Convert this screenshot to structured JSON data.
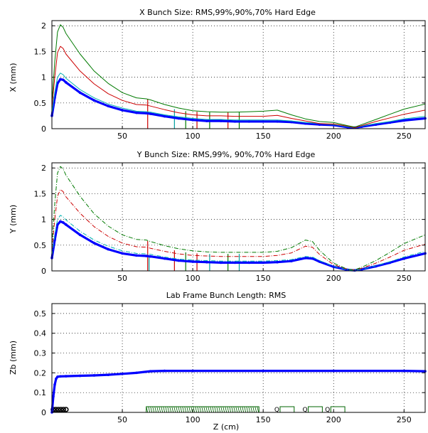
{
  "chart_data": [
    {
      "type": "line",
      "title": "X Bunch Size: RMS,99%,90%,70% Hard Edge",
      "xlabel": "",
      "ylabel": "X (mm)",
      "xlim": [
        0,
        265
      ],
      "ylim": [
        0,
        2.1
      ],
      "xticks": [
        "50",
        "100",
        "150",
        "200",
        "250"
      ],
      "yticks": [
        "0",
        "0.5",
        "1",
        "1.5",
        "2"
      ],
      "grid": true,
      "series": [
        {
          "color": "#0000ff",
          "style": "solid-thick-markers",
          "x": [
            0,
            2,
            4,
            6,
            8,
            10,
            20,
            30,
            40,
            50,
            60,
            67,
            70,
            80,
            90,
            100,
            110,
            120,
            130,
            140,
            150,
            160,
            170,
            180,
            190,
            200,
            210,
            215,
            220,
            230,
            240,
            250,
            265
          ],
          "values": [
            0.25,
            0.6,
            0.88,
            0.96,
            0.95,
            0.9,
            0.7,
            0.55,
            0.44,
            0.36,
            0.31,
            0.3,
            0.29,
            0.24,
            0.2,
            0.17,
            0.15,
            0.15,
            0.14,
            0.14,
            0.14,
            0.14,
            0.13,
            0.1,
            0.08,
            0.07,
            0.03,
            0.02,
            0.04,
            0.08,
            0.12,
            0.16,
            0.2
          ]
        },
        {
          "color": "#00b0b0",
          "style": "solid",
          "x": [
            0,
            2,
            4,
            6,
            8,
            10,
            20,
            30,
            40,
            50,
            60,
            67,
            70,
            80,
            90,
            100,
            110,
            120,
            130,
            140,
            150,
            160,
            170,
            180,
            190,
            200,
            210,
            215,
            220,
            230,
            240,
            250,
            265
          ],
          "values": [
            0.3,
            0.7,
            1.0,
            1.08,
            1.05,
            0.98,
            0.76,
            0.6,
            0.48,
            0.4,
            0.34,
            0.33,
            0.32,
            0.27,
            0.23,
            0.2,
            0.18,
            0.18,
            0.17,
            0.17,
            0.17,
            0.17,
            0.15,
            0.12,
            0.1,
            0.08,
            0.04,
            0.02,
            0.05,
            0.1,
            0.14,
            0.19,
            0.24
          ]
        },
        {
          "color": "#cc0000",
          "style": "solid",
          "x": [
            0,
            2,
            4,
            6,
            8,
            10,
            20,
            30,
            40,
            50,
            60,
            67,
            70,
            80,
            90,
            100,
            110,
            120,
            130,
            140,
            150,
            160,
            170,
            180,
            190,
            200,
            210,
            215,
            220,
            230,
            240,
            250,
            265
          ],
          "values": [
            0.4,
            1.0,
            1.48,
            1.6,
            1.56,
            1.45,
            1.12,
            0.87,
            0.68,
            0.55,
            0.47,
            0.46,
            0.44,
            0.37,
            0.31,
            0.27,
            0.25,
            0.25,
            0.24,
            0.24,
            0.24,
            0.26,
            0.2,
            0.15,
            0.1,
            0.09,
            0.05,
            0.02,
            0.06,
            0.14,
            0.21,
            0.28,
            0.36
          ]
        },
        {
          "color": "#007a00",
          "style": "solid",
          "x": [
            0,
            2,
            4,
            6,
            8,
            10,
            20,
            30,
            40,
            50,
            60,
            67,
            70,
            80,
            90,
            100,
            110,
            120,
            130,
            140,
            150,
            160,
            170,
            180,
            190,
            200,
            210,
            215,
            220,
            230,
            240,
            250,
            265
          ],
          "values": [
            0.5,
            1.3,
            1.88,
            2.02,
            1.97,
            1.85,
            1.45,
            1.12,
            0.88,
            0.7,
            0.6,
            0.58,
            0.56,
            0.47,
            0.4,
            0.35,
            0.33,
            0.32,
            0.32,
            0.33,
            0.34,
            0.36,
            0.27,
            0.19,
            0.14,
            0.12,
            0.06,
            0.03,
            0.08,
            0.18,
            0.28,
            0.38,
            0.48
          ]
        }
      ],
      "markers": [
        {
          "x": 68,
          "top": 0.58,
          "color": "#cc0000"
        },
        {
          "x": 87,
          "top": 0.38,
          "color": "#00a0a0"
        },
        {
          "x": 95,
          "top": 0.34,
          "color": "#007a00"
        },
        {
          "x": 103,
          "top": 0.33,
          "color": "#cc0000"
        },
        {
          "x": 112,
          "top": 0.32,
          "color": "#007a00"
        },
        {
          "x": 125,
          "top": 0.32,
          "color": "#cc0000"
        },
        {
          "x": 133,
          "top": 0.32,
          "color": "#007a00"
        }
      ]
    },
    {
      "type": "line",
      "title": "Y Bunch Size: RMS,99%, 90%,70% Hard Edge",
      "xlabel": "",
      "ylabel": "Y (mm)",
      "xlim": [
        0,
        265
      ],
      "ylim": [
        0,
        2.1
      ],
      "xticks": [
        "50",
        "100",
        "150",
        "200",
        "250"
      ],
      "yticks": [
        "0",
        "0.5",
        "1",
        "1.5",
        "2"
      ],
      "grid": true,
      "series": [
        {
          "color": "#0000ff",
          "style": "solid-thick-markers",
          "x": [
            0,
            2,
            4,
            6,
            8,
            10,
            20,
            30,
            40,
            50,
            60,
            67,
            70,
            80,
            90,
            100,
            110,
            120,
            130,
            140,
            150,
            160,
            170,
            180,
            185,
            190,
            200,
            210,
            215,
            220,
            230,
            240,
            250,
            265
          ],
          "values": [
            0.25,
            0.6,
            0.9,
            0.96,
            0.94,
            0.9,
            0.7,
            0.54,
            0.42,
            0.34,
            0.3,
            0.29,
            0.28,
            0.24,
            0.2,
            0.18,
            0.17,
            0.16,
            0.16,
            0.16,
            0.16,
            0.17,
            0.19,
            0.25,
            0.24,
            0.18,
            0.08,
            0.02,
            0.01,
            0.03,
            0.09,
            0.16,
            0.24,
            0.34
          ]
        },
        {
          "color": "#00b0b0",
          "style": "dashdot",
          "x": [
            0,
            2,
            4,
            6,
            8,
            10,
            20,
            30,
            40,
            50,
            60,
            67,
            70,
            80,
            90,
            100,
            110,
            120,
            130,
            140,
            150,
            160,
            170,
            180,
            185,
            190,
            200,
            210,
            215,
            220,
            230,
            240,
            250,
            265
          ],
          "values": [
            0.3,
            0.7,
            1.0,
            1.08,
            1.05,
            0.99,
            0.77,
            0.6,
            0.48,
            0.39,
            0.34,
            0.33,
            0.32,
            0.27,
            0.23,
            0.21,
            0.2,
            0.19,
            0.19,
            0.19,
            0.19,
            0.2,
            0.22,
            0.28,
            0.27,
            0.2,
            0.09,
            0.02,
            0.01,
            0.03,
            0.1,
            0.18,
            0.27,
            0.38
          ]
        },
        {
          "color": "#cc0000",
          "style": "dashdot",
          "x": [
            0,
            2,
            4,
            6,
            8,
            10,
            20,
            30,
            40,
            50,
            60,
            67,
            70,
            80,
            90,
            100,
            110,
            120,
            130,
            140,
            150,
            160,
            170,
            180,
            185,
            190,
            200,
            210,
            215,
            220,
            230,
            240,
            250,
            265
          ],
          "values": [
            0.4,
            1.0,
            1.45,
            1.58,
            1.54,
            1.44,
            1.12,
            0.86,
            0.67,
            0.54,
            0.47,
            0.46,
            0.44,
            0.38,
            0.33,
            0.3,
            0.29,
            0.28,
            0.28,
            0.28,
            0.28,
            0.3,
            0.35,
            0.48,
            0.46,
            0.32,
            0.12,
            0.03,
            0.02,
            0.05,
            0.15,
            0.27,
            0.4,
            0.52
          ]
        },
        {
          "color": "#007a00",
          "style": "dashdot",
          "x": [
            0,
            2,
            4,
            6,
            8,
            10,
            20,
            30,
            40,
            50,
            60,
            67,
            70,
            80,
            90,
            100,
            110,
            120,
            130,
            140,
            150,
            160,
            170,
            180,
            185,
            190,
            200,
            210,
            215,
            220,
            230,
            240,
            250,
            265
          ],
          "values": [
            0.5,
            1.3,
            1.9,
            2.03,
            1.98,
            1.86,
            1.45,
            1.11,
            0.87,
            0.7,
            0.61,
            0.6,
            0.57,
            0.49,
            0.43,
            0.39,
            0.37,
            0.36,
            0.36,
            0.36,
            0.36,
            0.38,
            0.45,
            0.6,
            0.57,
            0.4,
            0.15,
            0.03,
            0.02,
            0.07,
            0.2,
            0.36,
            0.53,
            0.7
          ]
        }
      ],
      "markers": [
        {
          "x": 68,
          "top": 0.58,
          "color": "#cc0000"
        },
        {
          "x": 69,
          "top": 0.3,
          "color": "#00a0a0"
        },
        {
          "x": 87,
          "top": 0.4,
          "color": "#cc0000"
        },
        {
          "x": 95,
          "top": 0.36,
          "color": "#007a00"
        },
        {
          "x": 103,
          "top": 0.34,
          "color": "#cc0000"
        },
        {
          "x": 112,
          "top": 0.33,
          "color": "#00a0a0"
        },
        {
          "x": 125,
          "top": 0.33,
          "color": "#007a00"
        },
        {
          "x": 133,
          "top": 0.33,
          "color": "#00a0a0"
        }
      ]
    },
    {
      "type": "line",
      "title": "Lab Frame Bunch Length: RMS",
      "xlabel": "Z (cm)",
      "ylabel": "Zb (mm)",
      "xlim": [
        0,
        265
      ],
      "ylim": [
        0,
        0.55
      ],
      "xticks": [
        "50",
        "100",
        "150",
        "200",
        "250"
      ],
      "yticks": [
        "0",
        "0.1",
        "0.2",
        "0.3",
        "0.4",
        "0.5"
      ],
      "grid": true,
      "series": [
        {
          "color": "#0000ff",
          "style": "solid-thick-markers",
          "x": [
            0,
            1,
            2,
            3,
            4,
            6,
            10,
            20,
            30,
            40,
            50,
            60,
            70,
            80,
            100,
            150,
            200,
            250,
            265
          ],
          "values": [
            0.0,
            0.08,
            0.14,
            0.17,
            0.18,
            0.182,
            0.183,
            0.185,
            0.187,
            0.19,
            0.195,
            0.2,
            0.208,
            0.21,
            0.21,
            0.21,
            0.21,
            0.21,
            0.208
          ]
        }
      ],
      "elements": [
        {
          "type": "drift",
          "x0": 1,
          "x1": 10
        },
        {
          "type": "dense",
          "x0": 67,
          "x1": 147
        },
        {
          "type": "quad",
          "x0": 162,
          "x1": 172,
          "label": "Q"
        },
        {
          "type": "quad",
          "x0": 182,
          "x1": 192,
          "label": "Q"
        },
        {
          "type": "quad",
          "x0": 198,
          "x1": 208,
          "label": "Q"
        }
      ]
    }
  ]
}
